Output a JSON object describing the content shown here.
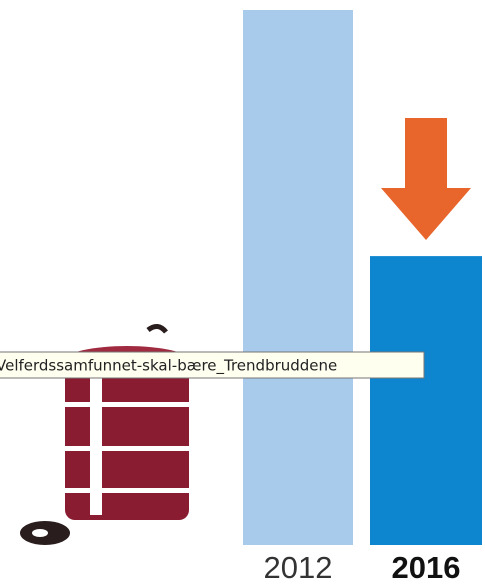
{
  "chart_data": {
    "type": "bar",
    "categories": [
      "2012",
      "2016"
    ],
    "values": [
      100,
      54
    ],
    "colors": [
      "#a8cbec",
      "#0d86cf"
    ],
    "ylim": [
      0,
      100
    ]
  },
  "tooltip": {
    "text": "Velferdssamfunnet-skal-bære_Trendbruddene"
  }
}
